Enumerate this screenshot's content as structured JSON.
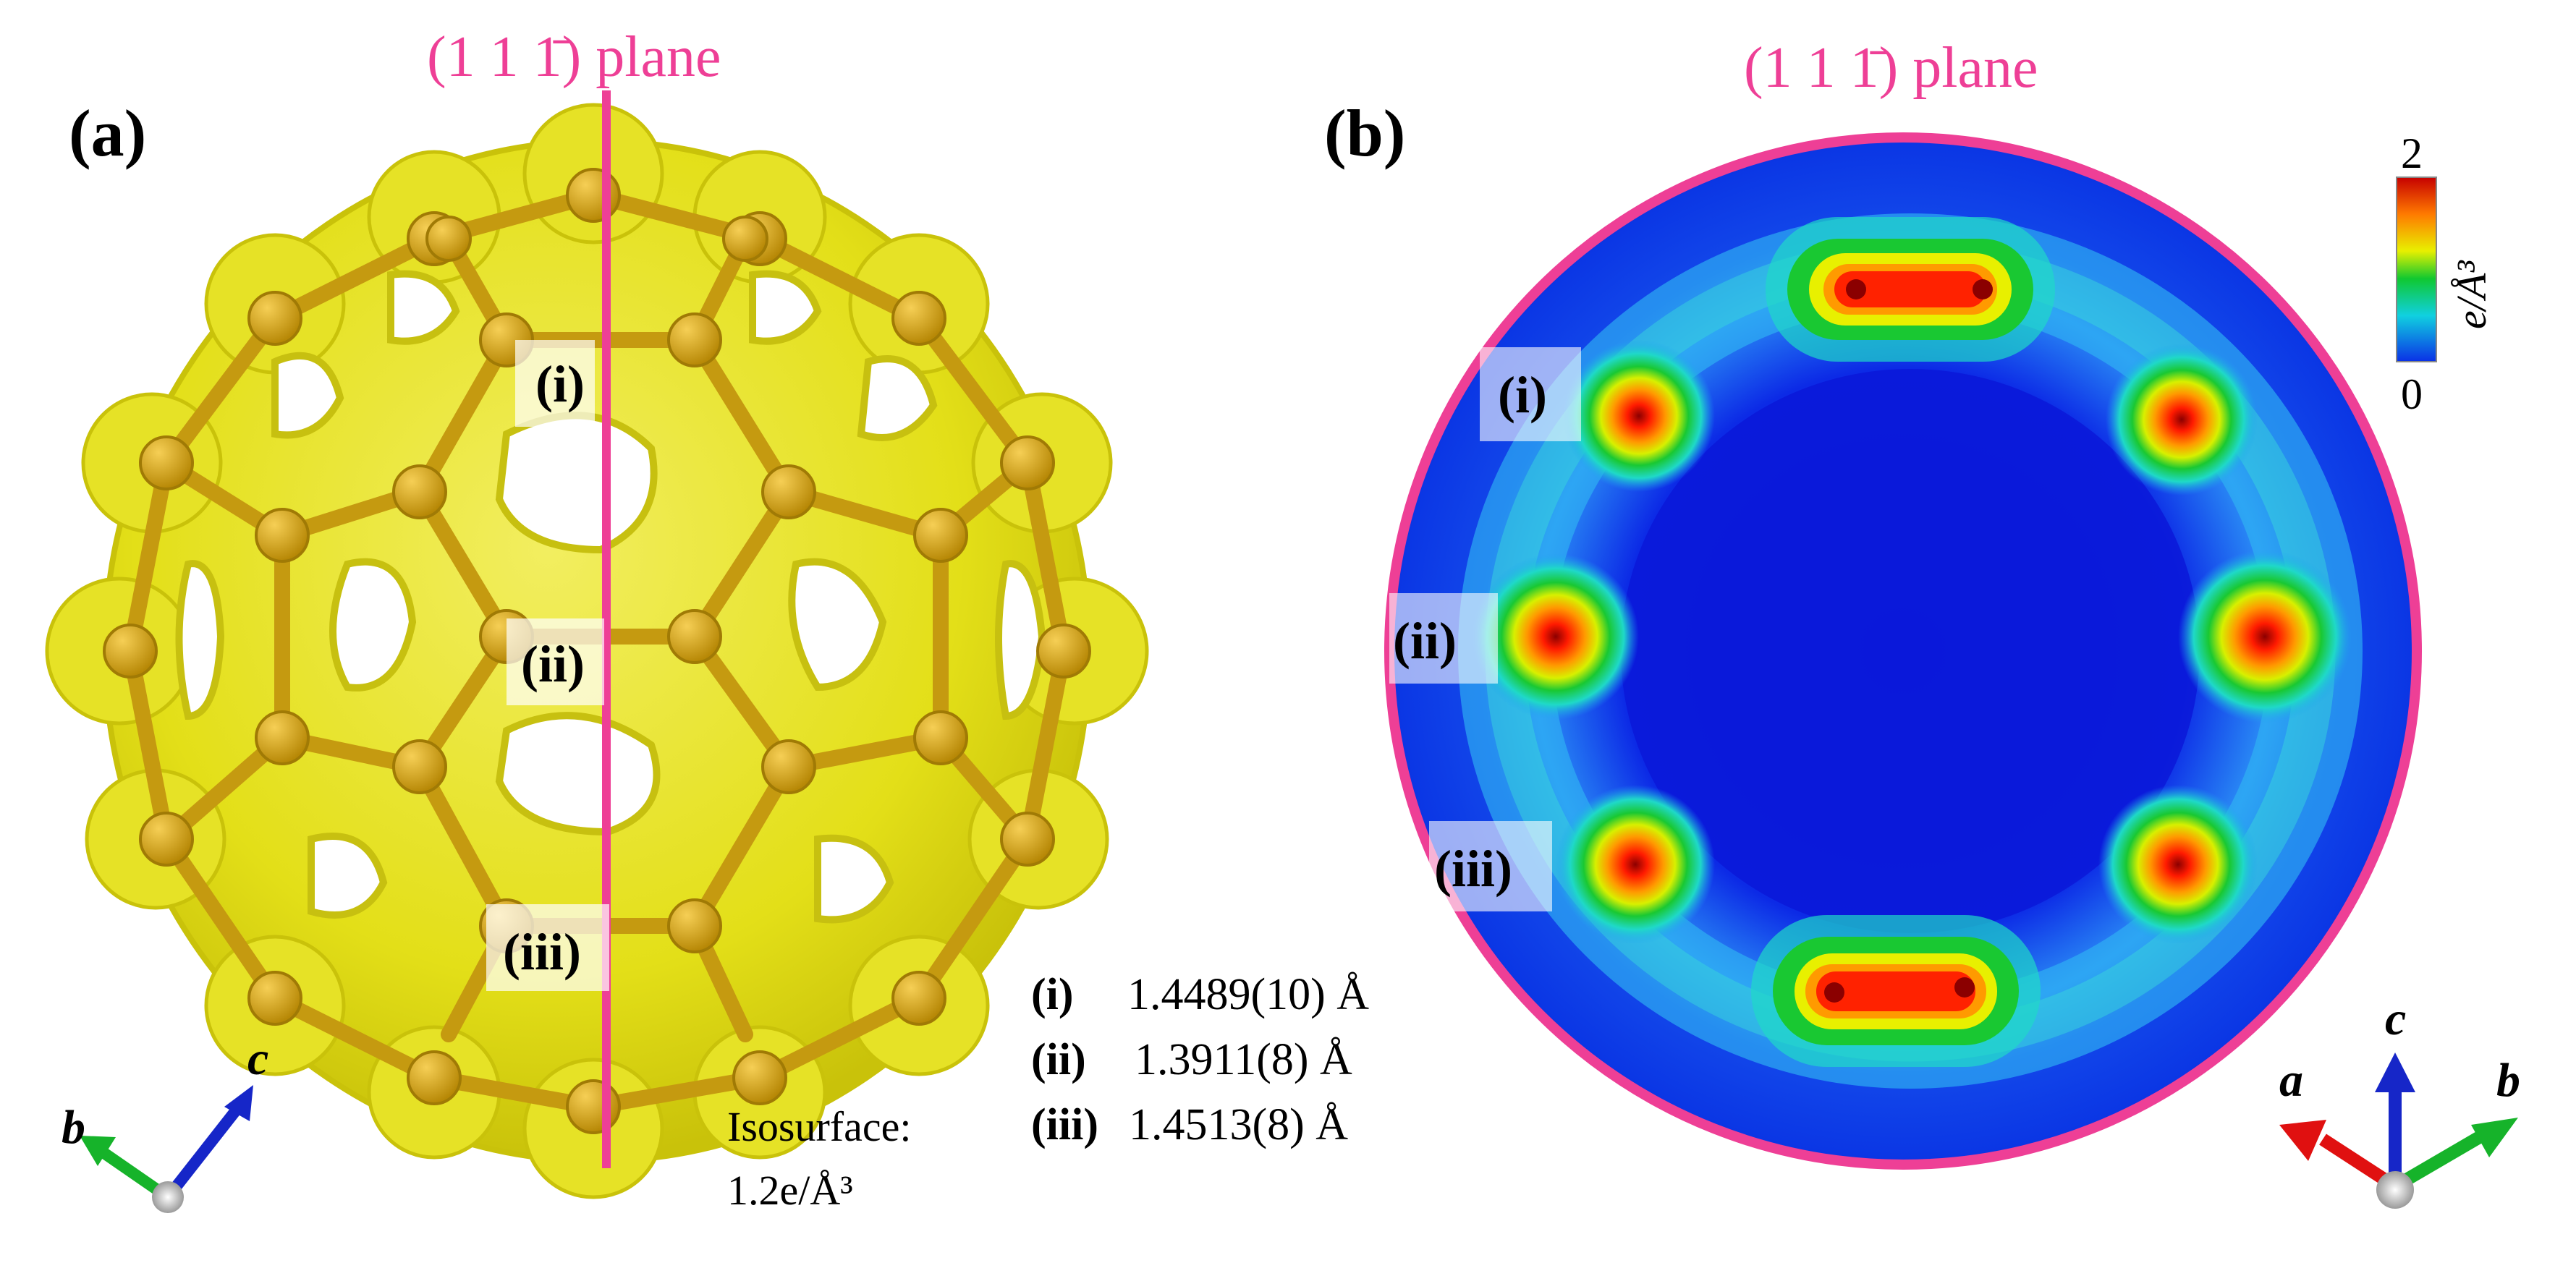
{
  "panel_a": {
    "panel_label": "(a)",
    "plane_label": "(1 1 1̄) plane",
    "bond_labels": [
      "(i)",
      "(ii)",
      "(iii)"
    ],
    "isosurface_line1": "Isosurface:",
    "isosurface_line2": "1.2e/Å³",
    "axes": {
      "b": "b",
      "c": "c"
    }
  },
  "panel_b": {
    "panel_label": "(b)",
    "plane_label": "(1 1 1̄) plane",
    "bond_labels": [
      "(i)",
      "(ii)",
      "(iii)"
    ],
    "colorbar": {
      "max": "2",
      "min": "0",
      "unit": "e/Å³"
    },
    "axes": {
      "a": "a",
      "b": "b",
      "c": "c"
    }
  },
  "bond_lengths": [
    {
      "label": "(i)",
      "value": "1.4489(10) Å"
    },
    {
      "label": "(ii)",
      "value": "1.3911(8) Å"
    },
    {
      "label": "(iii)",
      "value": "1.4513(8) Å"
    }
  ],
  "colors": {
    "plane": "#ee3f96",
    "isosurface": "#e3df18",
    "atoms": "#c99a0c",
    "map_background": "#0a2fe6",
    "axis_a": "#e01010",
    "axis_b": "#16b32a",
    "axis_c": "#1626c8"
  }
}
